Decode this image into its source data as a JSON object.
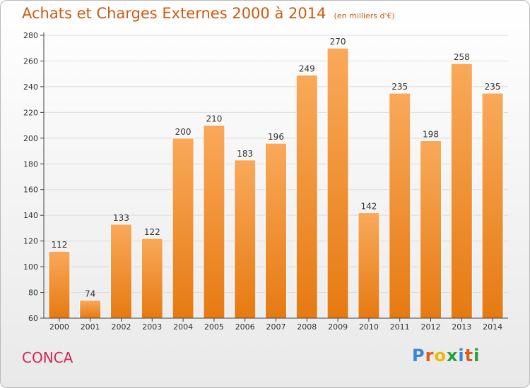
{
  "title": "Achats et Charges Externes 2000 à 2014",
  "subtitle": "(en milliers d'€)",
  "commune": "CONCA",
  "logo": {
    "letters": [
      "P",
      "r",
      "o",
      "x",
      "i",
      "t",
      "i"
    ],
    "colors": [
      "#3a86d4",
      "#e05a1c",
      "#f2b705",
      "#2a9d3e",
      "#3a86d4",
      "#e05a1c",
      "#2a9d3e"
    ]
  },
  "colors": {
    "bar": "#f08a2a",
    "bar_light": "#f9a95a",
    "grid": "#dcdcdc",
    "axis": "#444444"
  },
  "chart_data": {
    "type": "bar",
    "title": "Achats et Charges Externes 2000 à 2014",
    "subtitle": "(en milliers d'€)",
    "xlabel": "",
    "ylabel": "",
    "categories": [
      "2000",
      "2001",
      "2002",
      "2003",
      "2004",
      "2005",
      "2006",
      "2007",
      "2008",
      "2009",
      "2010",
      "2011",
      "2012",
      "2013",
      "2014"
    ],
    "values": [
      112,
      74,
      133,
      122,
      200,
      210,
      183,
      196,
      249,
      270,
      142,
      235,
      198,
      258,
      235
    ],
    "ylim": [
      60,
      280
    ],
    "yticks": [
      60,
      80,
      100,
      120,
      140,
      160,
      180,
      200,
      220,
      240,
      260,
      280
    ],
    "grid": true,
    "legend": "none"
  }
}
